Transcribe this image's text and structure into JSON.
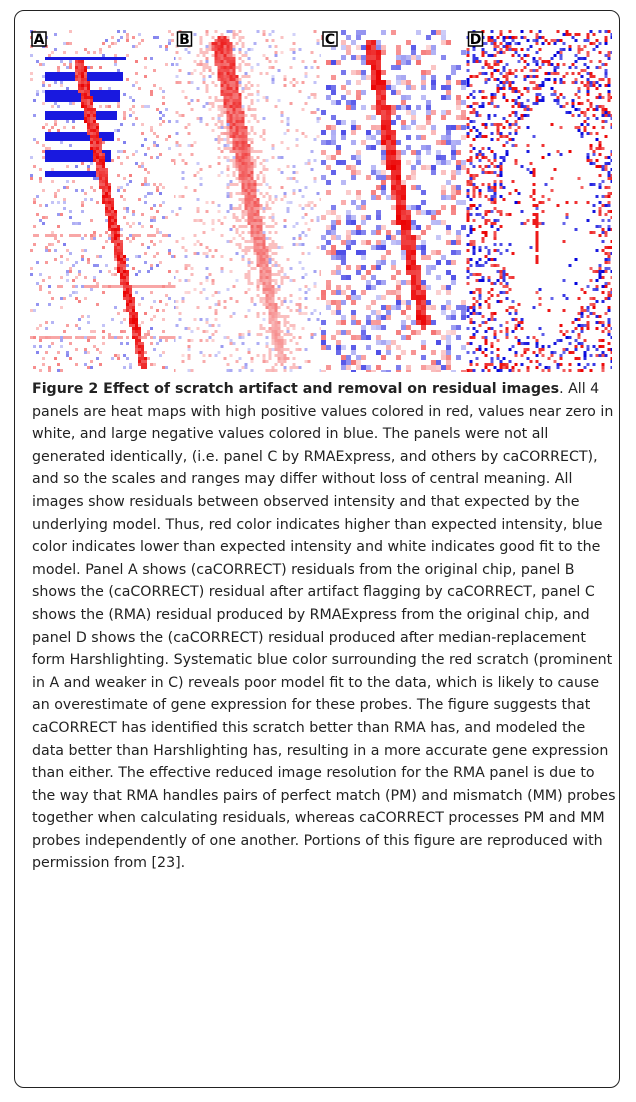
{
  "figure": {
    "panels": [
      {
        "label": "A"
      },
      {
        "label": "B"
      },
      {
        "label": "C"
      },
      {
        "label": "D"
      }
    ]
  },
  "caption": {
    "title": "Figure 2 Effect of scratch artifact and removal on residual images",
    "text": ". All 4 panels are heat maps with high positive values colored in red, values near zero in white, and large negative values colored in blue. The panels were not all generated identically, (i.e. panel C by RMAExpress, and others by caCORRECT), and so the scales and ranges may differ without loss of central meaning. All images show residuals between observed intensity and that expected by the underlying model. Thus, red color indicates higher than expected intensity, blue color indicates lower than expected intensity and white indicates good fit to the model. Panel A shows (caCORRECT) residuals from the original chip, panel B shows the (caCORRECT) residual after artifact flagging by caCORRECT, panel C shows the (RMA) residual produced by RMAExpress from the original chip, and panel D shows the (caCORRECT) residual produced after median-replacement form Harshlighting. Systematic blue color surrounding the red scratch (prominent in A and weaker in C) reveals poor model fit to the data, which is likely to cause an overestimate of gene expression for these probes. The figure suggests that caCORRECT has identified this scratch better than RMA has, and modeled the data better than Harshlighting has, resulting in a more accurate gene expression than either. The effective reduced image resolution for the RMA panel is due to the way that RMA handles pairs of perfect match (PM) and mismatch (MM) probes together when calculating residuals, whereas caCORRECT processes PM and MM probes independently of one another. Portions of this figure are reproduced with permission from [23]."
  }
}
